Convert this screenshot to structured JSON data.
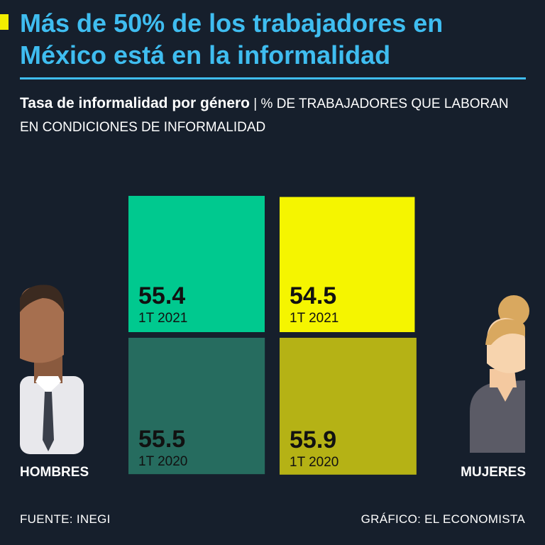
{
  "title": "Más de 50% de los trabajadores en México está en la informalidad",
  "subtitle": {
    "bold": "Tasa de informalidad por género",
    "separator": "|",
    "rest": "% DE TRABAJADORES QUE LABORAN EN CONDICIONES DE INFORMALIDAD"
  },
  "colors": {
    "background": "#161f2c",
    "title": "#3fbdf0",
    "hombres_2021": "#00c98f",
    "hombres_2020": "#266c5f",
    "mujeres_2021": "#f5f500",
    "mujeres_2020": "#b5b215"
  },
  "chart_data": {
    "type": "bar",
    "title": "Tasa de informalidad por género",
    "unit": "% de trabajadores que laboran en condiciones de informalidad",
    "categories": [
      "HOMBRES",
      "MUJERES"
    ],
    "series": [
      {
        "name": "1T 2021",
        "values": [
          55.4,
          54.5
        ],
        "value_labels": [
          "55.4",
          "54.5"
        ]
      },
      {
        "name": "1T 2020",
        "values": [
          55.5,
          55.9
        ],
        "value_labels": [
          "55.5",
          "55.9"
        ]
      }
    ]
  },
  "icons": {
    "hombres": "man-icon",
    "mujeres": "woman-icon"
  },
  "footer": {
    "source": "FUENTE: INEGI",
    "credit": "GRÁFICO: EL ECONOMISTA"
  }
}
